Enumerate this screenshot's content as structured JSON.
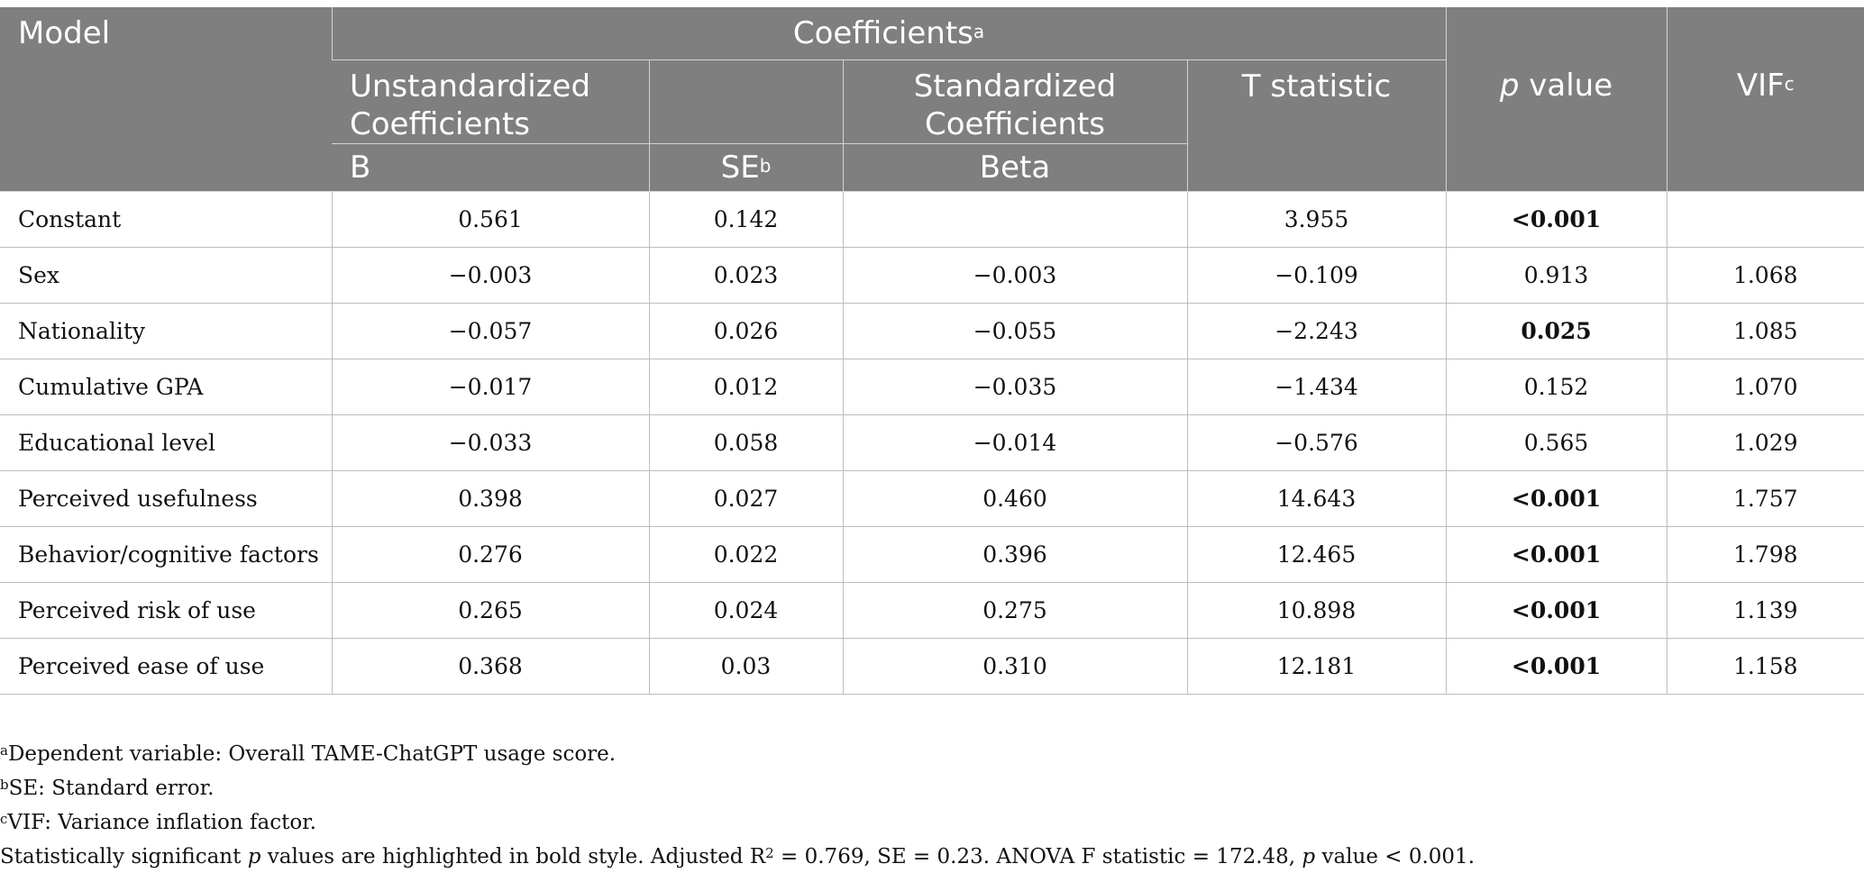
{
  "header": {
    "model": "Model",
    "coefficients": "Coefficients",
    "coefficients_sup": "a",
    "unstandardized": "Unstandardized Coefficients",
    "standardized": "Standardized Coefficients",
    "t_statistic": "T statistic",
    "p_italic": "p",
    "p_rest": " value",
    "vif": "VIF",
    "vif_sup": "c",
    "b": "B",
    "se": "SE",
    "se_sup": "b",
    "beta": "Beta"
  },
  "rows": [
    {
      "model": "Constant",
      "b": "0.561",
      "se": "0.142",
      "beta": "",
      "t": "3.955",
      "p": "<0.001",
      "vif": ""
    },
    {
      "model": "Sex",
      "b": "−0.003",
      "se": "0.023",
      "beta": "−0.003",
      "t": "−0.109",
      "p": "0.913",
      "vif": "1.068"
    },
    {
      "model": "Nationality",
      "b": "−0.057",
      "se": "0.026",
      "beta": "−0.055",
      "t": "−2.243",
      "p": "0.025",
      "vif": "1.085"
    },
    {
      "model": "Cumulative GPA",
      "b": "−0.017",
      "se": "0.012",
      "beta": "−0.035",
      "t": "−1.434",
      "p": "0.152",
      "vif": "1.070"
    },
    {
      "model": "Educational level",
      "b": "−0.033",
      "se": "0.058",
      "beta": "−0.014",
      "t": "−0.576",
      "p": "0.565",
      "vif": "1.029"
    },
    {
      "model": "Perceived usefulness",
      "b": "0.398",
      "se": "0.027",
      "beta": "0.460",
      "t": "14.643",
      "p": "<0.001",
      "vif": "1.757"
    },
    {
      "model": "Behavior/cognitive factors",
      "b": "0.276",
      "se": "0.022",
      "beta": "0.396",
      "t": "12.465",
      "p": "<0.001",
      "vif": "1.798"
    },
    {
      "model": "Perceived risk of use",
      "b": "0.265",
      "se": "0.024",
      "beta": "0.275",
      "t": "10.898",
      "p": "<0.001",
      "vif": "1.139"
    },
    {
      "model": "Perceived ease of use",
      "b": "0.368",
      "se": "0.03",
      "beta": "0.310",
      "t": "12.181",
      "p": "<0.001",
      "vif": "1.158"
    }
  ],
  "notes": {
    "a_sup": "a",
    "a_text": "Dependent variable: Overall TAME-ChatGPT usage score.",
    "b_sup": "b",
    "b_text": "SE: Standard error.",
    "c_sup": "c",
    "c_text": "VIF: Variance inflation factor.",
    "sig_1": "Statistically significant ",
    "sig_p1": "p",
    "sig_2": " values are highlighted in bold style. Adjusted R",
    "sig_sup": "2",
    "sig_3": " = 0.769, SE = 0.23. ANOVA F statistic = 172.48, ",
    "sig_p2": "p",
    "sig_4": " value < 0.001."
  }
}
